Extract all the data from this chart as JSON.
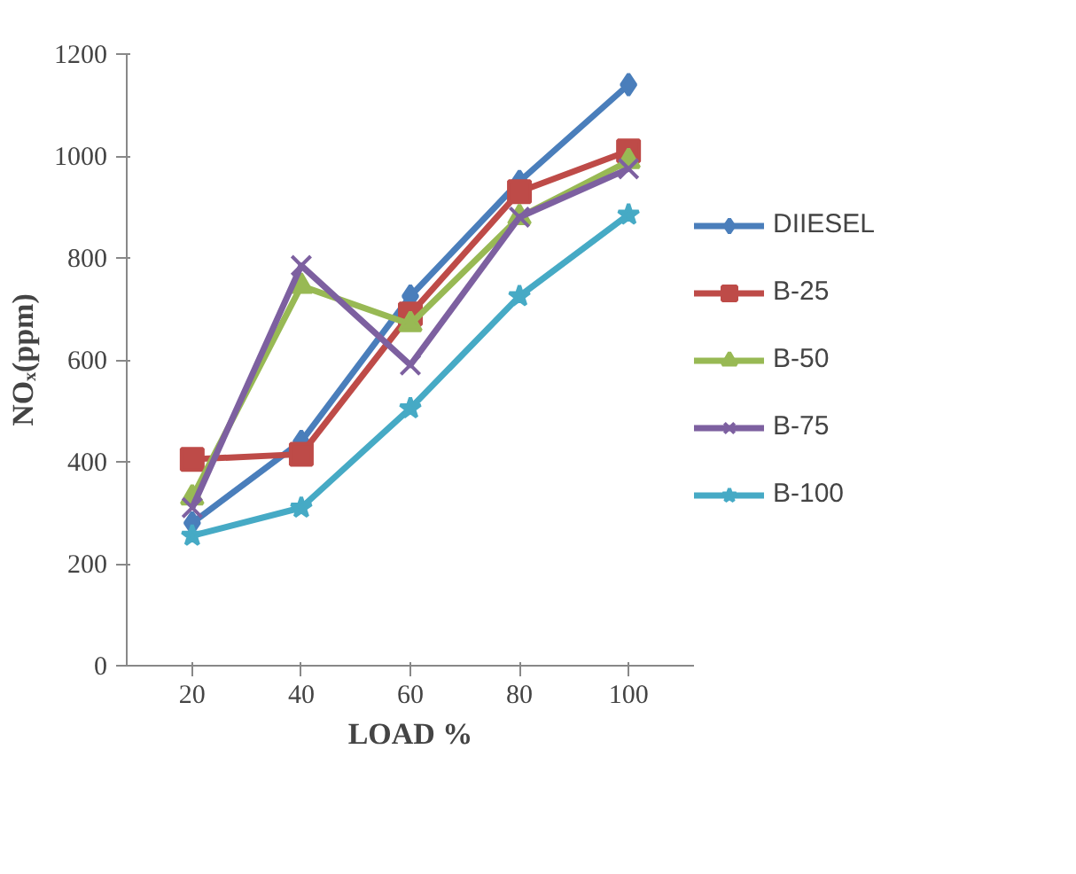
{
  "chart_data": {
    "type": "line",
    "xlabel": "LOAD %",
    "ylabel": "NOₓ(ppm)",
    "categories": [
      "20",
      "40",
      "60",
      "80",
      "100"
    ],
    "ylim": [
      0,
      1200
    ],
    "yticks": [
      0,
      200,
      400,
      600,
      800,
      1000,
      1200
    ],
    "legend": "right",
    "line_style": "solid",
    "series": [
      {
        "name": "DIIESEL",
        "color": "#4a7ebb",
        "marker": "diamond",
        "values": [
          280,
          440,
          725,
          950,
          1140
        ]
      },
      {
        "name": "B-25",
        "color": "#be4b48",
        "marker": "square",
        "values": [
          405,
          415,
          690,
          930,
          1010
        ]
      },
      {
        "name": "B-50",
        "color": "#98b954",
        "marker": "triangle",
        "values": [
          330,
          745,
          670,
          880,
          990
        ]
      },
      {
        "name": "B-75",
        "color": "#7d60a0",
        "marker": "cross",
        "values": [
          310,
          785,
          590,
          880,
          975
        ]
      },
      {
        "name": "B-100",
        "color": "#46aac5",
        "marker": "star",
        "values": [
          255,
          310,
          505,
          725,
          885
        ]
      }
    ]
  }
}
